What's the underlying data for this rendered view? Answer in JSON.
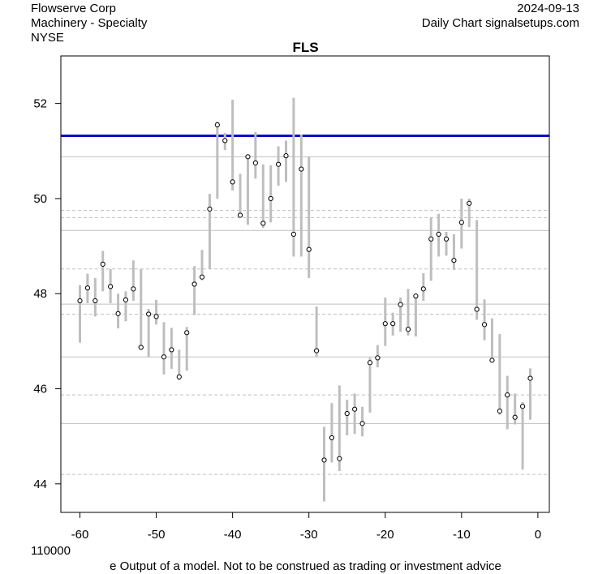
{
  "header": {
    "company": "Flowserve Corp",
    "industry": "Machinery - Specialty",
    "exchange": "NYSE",
    "date": "2024-09-13",
    "source": "Daily Chart signalsetups.com"
  },
  "footer": {
    "volume_label": "110000",
    "disclaimer": "e Output of a model. Not to be construed as trading or investment advice"
  },
  "colors": {
    "bar": "#bebebe",
    "point_fill": "#ffffff",
    "point_stroke": "#000000",
    "blue_line": "#0000cc",
    "solid_ref": "#c0c0c0",
    "dashed_ref": "#c0c0c0"
  },
  "chart_data": {
    "type": "scatter",
    "title": "FLS",
    "xlabel": "",
    "ylabel": "",
    "xlim": [
      -62.5,
      1.5
    ],
    "ylim": [
      43.4,
      53.0
    ],
    "x_ticks": [
      -60,
      -50,
      -40,
      -30,
      -20,
      -10,
      0
    ],
    "y_ticks": [
      44,
      46,
      48,
      50,
      52
    ],
    "grid": false,
    "blue_line": 51.32,
    "solid_reference_lines": [
      50.88,
      49.33,
      47.78,
      46.67,
      45.27
    ],
    "dashed_reference_lines": [
      49.75,
      49.6,
      48.52,
      47.57,
      45.87,
      44.2
    ],
    "series": [
      {
        "x": [
          -60,
          -59,
          -58,
          -57,
          -56,
          -55,
          -54,
          -53,
          -52,
          -51,
          -50,
          -49,
          -48,
          -47,
          -46,
          -45,
          -44,
          -43,
          -42,
          -41,
          -40,
          -39,
          -38,
          -37,
          -36,
          -35,
          -34,
          -33,
          -32,
          -31,
          -30,
          -29,
          -28,
          -27,
          -26,
          -25,
          -24,
          -23,
          -22,
          -21,
          -20,
          -19,
          -18,
          -17,
          -16,
          -15,
          -14,
          -13,
          -12,
          -11,
          -10,
          -9,
          -8,
          -7,
          -6,
          -5,
          -4,
          -3,
          -2,
          -1
        ],
        "close": [
          47.85,
          48.12,
          47.85,
          48.62,
          48.15,
          47.58,
          47.87,
          48.1,
          46.87,
          47.57,
          47.52,
          46.67,
          46.82,
          46.25,
          47.18,
          48.2,
          48.35,
          49.78,
          51.55,
          51.22,
          50.35,
          49.65,
          50.88,
          50.75,
          49.48,
          50.0,
          50.72,
          50.9,
          49.25,
          50.62,
          48.93,
          46.8,
          44.5,
          44.97,
          44.53,
          45.48,
          45.57,
          45.27,
          46.55,
          46.65,
          47.37,
          47.37,
          47.77,
          47.25,
          47.95,
          48.1,
          49.15,
          49.25,
          49.15,
          48.7,
          49.5,
          49.9,
          47.67,
          47.35,
          46.6,
          45.53,
          45.87,
          45.4,
          45.63,
          46.22
        ],
        "high": [
          48.18,
          48.42,
          48.33,
          48.9,
          48.52,
          48.0,
          48.05,
          48.7,
          48.52,
          47.68,
          47.87,
          47.4,
          47.28,
          46.82,
          47.3,
          48.58,
          48.92,
          50.1,
          51.62,
          51.38,
          52.08,
          50.52,
          50.92,
          51.4,
          50.72,
          50.7,
          51.1,
          51.22,
          52.12,
          51.35,
          50.88,
          47.73,
          45.2,
          45.7,
          46.07,
          45.77,
          45.9,
          45.62,
          46.65,
          46.92,
          47.92,
          47.6,
          47.92,
          48.1,
          48.0,
          48.43,
          49.6,
          49.68,
          49.3,
          49.25,
          50.0,
          50.0,
          49.55,
          47.88,
          47.48,
          47.15,
          46.27,
          45.9,
          45.72,
          46.43
        ],
        "low": [
          46.97,
          47.8,
          47.52,
          48.05,
          47.8,
          47.27,
          47.42,
          47.85,
          46.85,
          46.67,
          47.35,
          46.3,
          46.42,
          46.18,
          46.38,
          47.55,
          48.28,
          48.52,
          50.0,
          51.02,
          50.17,
          49.6,
          49.45,
          50.42,
          49.38,
          49.5,
          50.27,
          50.35,
          48.78,
          48.78,
          48.33,
          46.67,
          43.63,
          44.45,
          44.27,
          45.02,
          45.05,
          45.0,
          45.5,
          46.45,
          46.9,
          47.12,
          47.2,
          47.12,
          47.1,
          47.85,
          48.27,
          48.78,
          48.8,
          48.5,
          48.95,
          49.4,
          47.45,
          47.02,
          46.55,
          45.45,
          45.15,
          45.25,
          44.3,
          45.35
        ]
      }
    ]
  }
}
